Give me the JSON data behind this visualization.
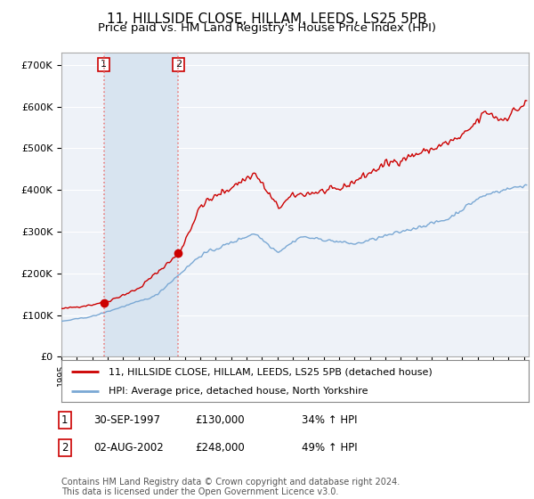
{
  "title": "11, HILLSIDE CLOSE, HILLAM, LEEDS, LS25 5PB",
  "subtitle": "Price paid vs. HM Land Registry's House Price Index (HPI)",
  "title_fontsize": 11,
  "subtitle_fontsize": 9.5,
  "yticks": [
    0,
    100000,
    200000,
    300000,
    400000,
    500000,
    600000,
    700000
  ],
  "ytick_labels": [
    "£0",
    "£100K",
    "£200K",
    "£300K",
    "£400K",
    "£500K",
    "£600K",
    "£700K"
  ],
  "ylim": [
    0,
    730000
  ],
  "xlim_start": 1995.0,
  "xlim_end": 2025.3,
  "background_color": "#ffffff",
  "plot_bg_color": "#eef2f8",
  "shade_color": "#d8e4f0",
  "grid_color": "#ffffff",
  "sale1_x": 1997.75,
  "sale1_y": 130000,
  "sale2_x": 2002.58,
  "sale2_y": 248000,
  "legend_entries": [
    "11, HILLSIDE CLOSE, HILLAM, LEEDS, LS25 5PB (detached house)",
    "HPI: Average price, detached house, North Yorkshire"
  ],
  "table_rows": [
    [
      "1",
      "30-SEP-1997",
      "£130,000",
      "34% ↑ HPI"
    ],
    [
      "2",
      "02-AUG-2002",
      "£248,000",
      "49% ↑ HPI"
    ]
  ],
  "footer": "Contains HM Land Registry data © Crown copyright and database right 2024.\nThis data is licensed under the Open Government Licence v3.0.",
  "red_line_color": "#cc0000",
  "blue_line_color": "#7aa8d4",
  "dashed_color": "#e88080"
}
